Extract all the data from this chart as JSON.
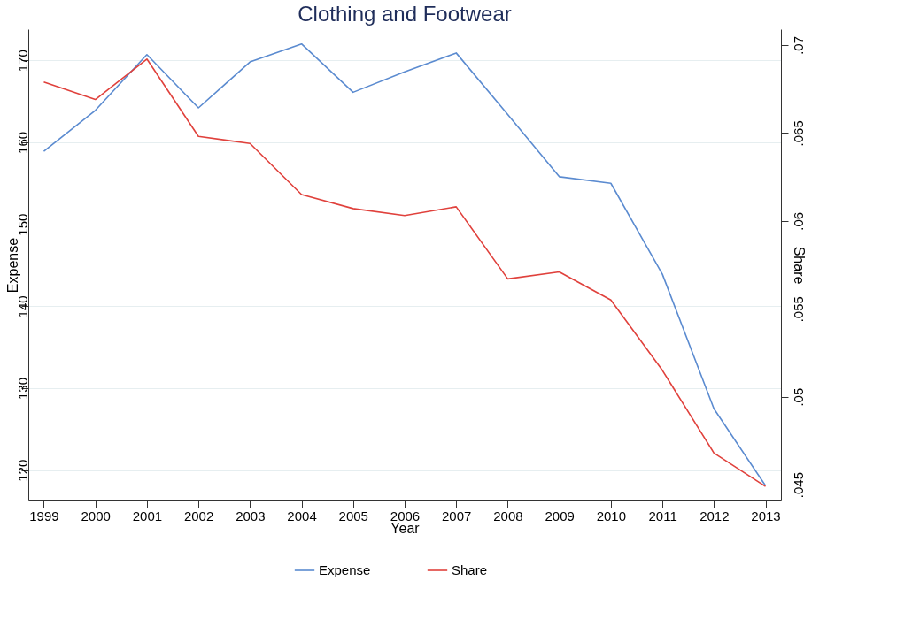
{
  "chart_data": {
    "type": "line",
    "title": "Clothing and Footwear",
    "xlabel": "Year",
    "ylabel": "Expense",
    "y2label": "Share",
    "categories": [
      "1999",
      "2000",
      "2001",
      "2002",
      "2003",
      "2004",
      "2005",
      "2006",
      "2007",
      "2008",
      "2009",
      "2010",
      "2011",
      "2012",
      "2013"
    ],
    "series": [
      {
        "name": "Expense",
        "color": "#5b8bd0",
        "values": [
          158.9,
          163.9,
          170.7,
          164.2,
          169.8,
          172.0,
          166.1,
          168.6,
          170.9,
          163.4,
          155.8,
          155.0,
          143.9,
          127.5,
          118.1
        ]
      },
      {
        "name": "Share",
        "color": "#e0413c",
        "axis": "y2",
        "values": [
          0.0679,
          0.0669,
          0.0692,
          0.0648,
          0.0644,
          0.0615,
          0.0607,
          0.0603,
          0.0608,
          0.0567,
          0.0571,
          0.0555,
          0.0515,
          0.0468,
          0.0449
        ]
      }
    ],
    "ylim": [
      116.3,
      173.8
    ],
    "yticks": [
      120,
      130,
      140,
      150,
      160,
      170
    ],
    "y2lim": [
      0.0441,
      0.0709
    ],
    "y2ticks": [
      {
        "value": 0.045,
        "label": ".045"
      },
      {
        "value": 0.05,
        "label": ".05"
      },
      {
        "value": 0.055,
        "label": ".055"
      },
      {
        "value": 0.06,
        "label": ".06"
      },
      {
        "value": 0.065,
        "label": ".065"
      },
      {
        "value": 0.07,
        "label": ".07"
      }
    ],
    "grid": "y",
    "legend": "bottom",
    "line_style": "solid",
    "marker": "none"
  }
}
